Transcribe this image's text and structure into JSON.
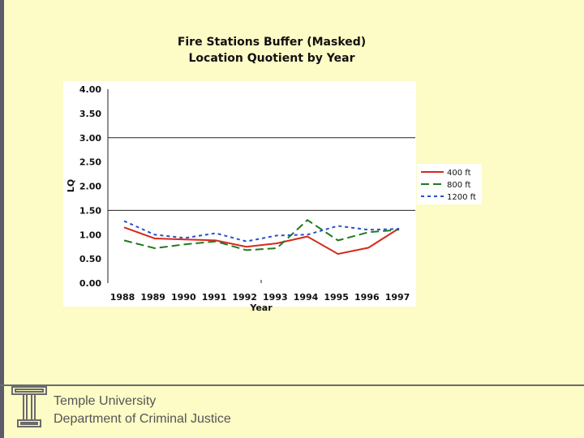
{
  "chart_data": {
    "type": "line",
    "title": "Fire Stations Buffer (Masked)",
    "subtitle": "Location Quotient by Year",
    "xlabel": "Year",
    "ylabel": "LQ",
    "categories": [
      "1988",
      "1989",
      "1990",
      "1991",
      "1992",
      "1993",
      "1994",
      "1995",
      "1996",
      "1997"
    ],
    "ylim": [
      0,
      4
    ],
    "yticks": [
      "0.00",
      "0.50",
      "1.00",
      "1.50",
      "2.00",
      "2.50",
      "3.00",
      "3.50",
      "4.00"
    ],
    "gridlines": [
      1.5,
      3.0
    ],
    "legend_position": "right",
    "series": [
      {
        "name": "400 ft",
        "color": "#d42a1c",
        "dash": "solid",
        "values": [
          1.15,
          0.92,
          0.9,
          0.88,
          0.75,
          0.82,
          0.96,
          0.6,
          0.73,
          1.13
        ]
      },
      {
        "name": "800 ft",
        "color": "#1f7a1f",
        "dash": "long",
        "values": [
          0.88,
          0.72,
          0.8,
          0.86,
          0.68,
          0.72,
          1.3,
          0.88,
          1.05,
          1.1
        ]
      },
      {
        "name": "1200 ft",
        "color": "#2850c8",
        "dash": "short",
        "values": [
          1.28,
          1.0,
          0.93,
          1.03,
          0.86,
          0.98,
          1.0,
          1.18,
          1.1,
          1.12
        ]
      }
    ]
  },
  "footer": {
    "line1": "Temple University",
    "line2": "Department of Criminal Justice"
  }
}
